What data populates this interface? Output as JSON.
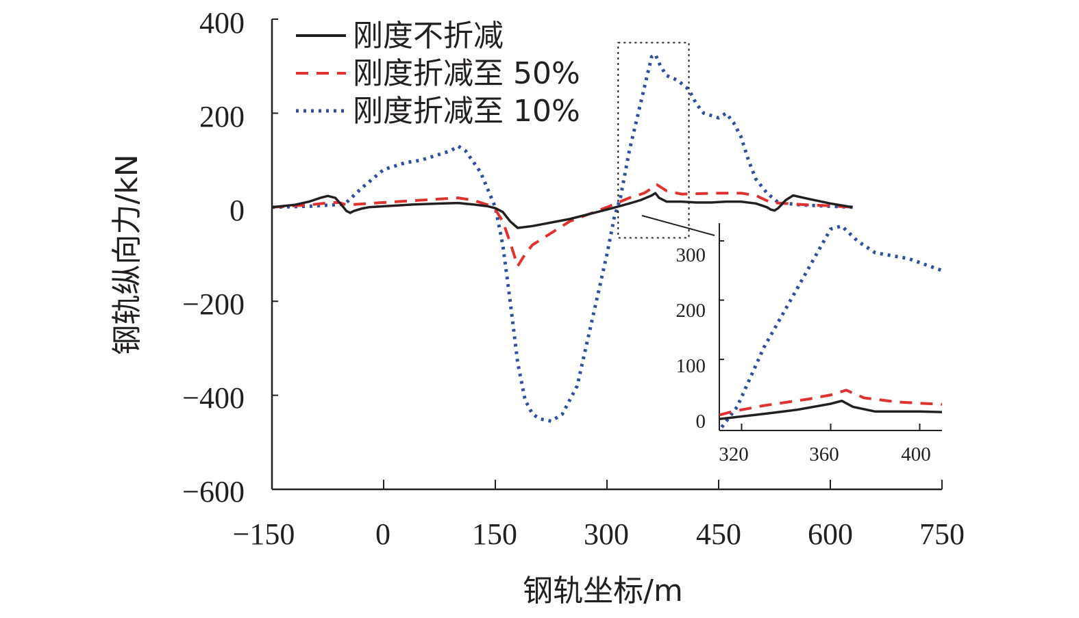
{
  "chart_data": {
    "type": "line",
    "title": "",
    "xlabel": "钢轨坐标/m",
    "ylabel": "钢轨纵向力/kN",
    "xlim": [
      -150,
      750
    ],
    "ylim": [
      -600,
      400
    ],
    "xticks": [
      "−150",
      "0",
      "150",
      "300",
      "450",
      "600",
      "750"
    ],
    "yticks": [
      "400",
      "200",
      "0",
      "−200",
      "−400",
      "−600"
    ],
    "legend_position": "top-left",
    "series": [
      {
        "name": "刚度不折减",
        "color": "#231f20",
        "style": "solid",
        "x": [
          -150,
          -120,
          -100,
          -85,
          -75,
          -65,
          -55,
          -50,
          -45,
          -40,
          -30,
          -20,
          0,
          20,
          40,
          60,
          80,
          100,
          120,
          140,
          150,
          160,
          170,
          180,
          200,
          250,
          300,
          330,
          345,
          360,
          365,
          370,
          380,
          400,
          420,
          440,
          460,
          480,
          500,
          515,
          520,
          525,
          530,
          540,
          550,
          570,
          600,
          630
        ],
        "y": [
          0,
          5,
          12,
          20,
          24,
          20,
          2,
          -8,
          -12,
          -8,
          -3,
          0,
          2,
          4,
          6,
          7,
          8,
          9,
          6,
          2,
          -2,
          -10,
          -30,
          -44,
          -40,
          -25,
          -5,
          8,
          15,
          25,
          30,
          20,
          12,
          12,
          10,
          10,
          12,
          12,
          8,
          0,
          -5,
          -7,
          -2,
          15,
          25,
          18,
          8,
          0
        ]
      },
      {
        "name": "刚度折减至 50%",
        "color": "#e03131",
        "style": "dashed",
        "x": [
          -150,
          -100,
          -70,
          -60,
          -50,
          0,
          50,
          100,
          120,
          140,
          150,
          160,
          170,
          180,
          190,
          200,
          250,
          300,
          330,
          350,
          360,
          367,
          380,
          400,
          450,
          480,
          500,
          520,
          540,
          570,
          600,
          630
        ],
        "y": [
          0,
          5,
          10,
          10,
          5,
          10,
          15,
          20,
          15,
          5,
          -5,
          -30,
          -75,
          -125,
          -100,
          -80,
          -30,
          0,
          20,
          30,
          40,
          48,
          35,
          28,
          30,
          30,
          25,
          10,
          8,
          5,
          3,
          0
        ],
        "inset_overrides": {
          "x": [
            310,
            316,
            330,
            350,
            360,
            367,
            375,
            390,
            410
          ],
          "y": [
            6,
            12,
            22,
            33,
            40,
            48,
            35,
            28,
            24
          ]
        }
      },
      {
        "name": "刚度折减至 10%",
        "color": "#2e4fa0",
        "style": "dotted",
        "x": [
          -150,
          -100,
          -70,
          -60,
          -50,
          -30,
          0,
          30,
          50,
          70,
          90,
          100,
          110,
          130,
          150,
          160,
          170,
          180,
          190,
          200,
          210,
          225,
          240,
          260,
          280,
          300,
          310,
          318,
          330,
          345,
          360,
          365,
          372,
          380,
          395,
          410,
          420,
          430,
          440,
          450,
          460,
          470,
          480,
          490,
          500,
          515,
          530,
          560,
          600,
          630
        ],
        "y": [
          0,
          2,
          5,
          5,
          10,
          40,
          80,
          95,
          100,
          110,
          120,
          130,
          120,
          75,
          0,
          -80,
          -200,
          -330,
          -410,
          -440,
          -450,
          -455,
          -440,
          -380,
          -240,
          -100,
          -20,
          20,
          120,
          220,
          320,
          325,
          300,
          280,
          270,
          250,
          220,
          200,
          195,
          190,
          200,
          180,
          150,
          100,
          60,
          30,
          10,
          5,
          2,
          0
        ]
      }
    ],
    "inset": {
      "xlim": [
        310,
        410
      ],
      "ylim": [
        -20,
        330
      ],
      "xticks": [
        "320",
        "360",
        "400"
      ],
      "yticks": [
        "300",
        "200",
        "100",
        "0"
      ],
      "zoom_box_x": [
        315,
        410
      ],
      "zoom_box_y": [
        -65,
        350
      ]
    }
  }
}
